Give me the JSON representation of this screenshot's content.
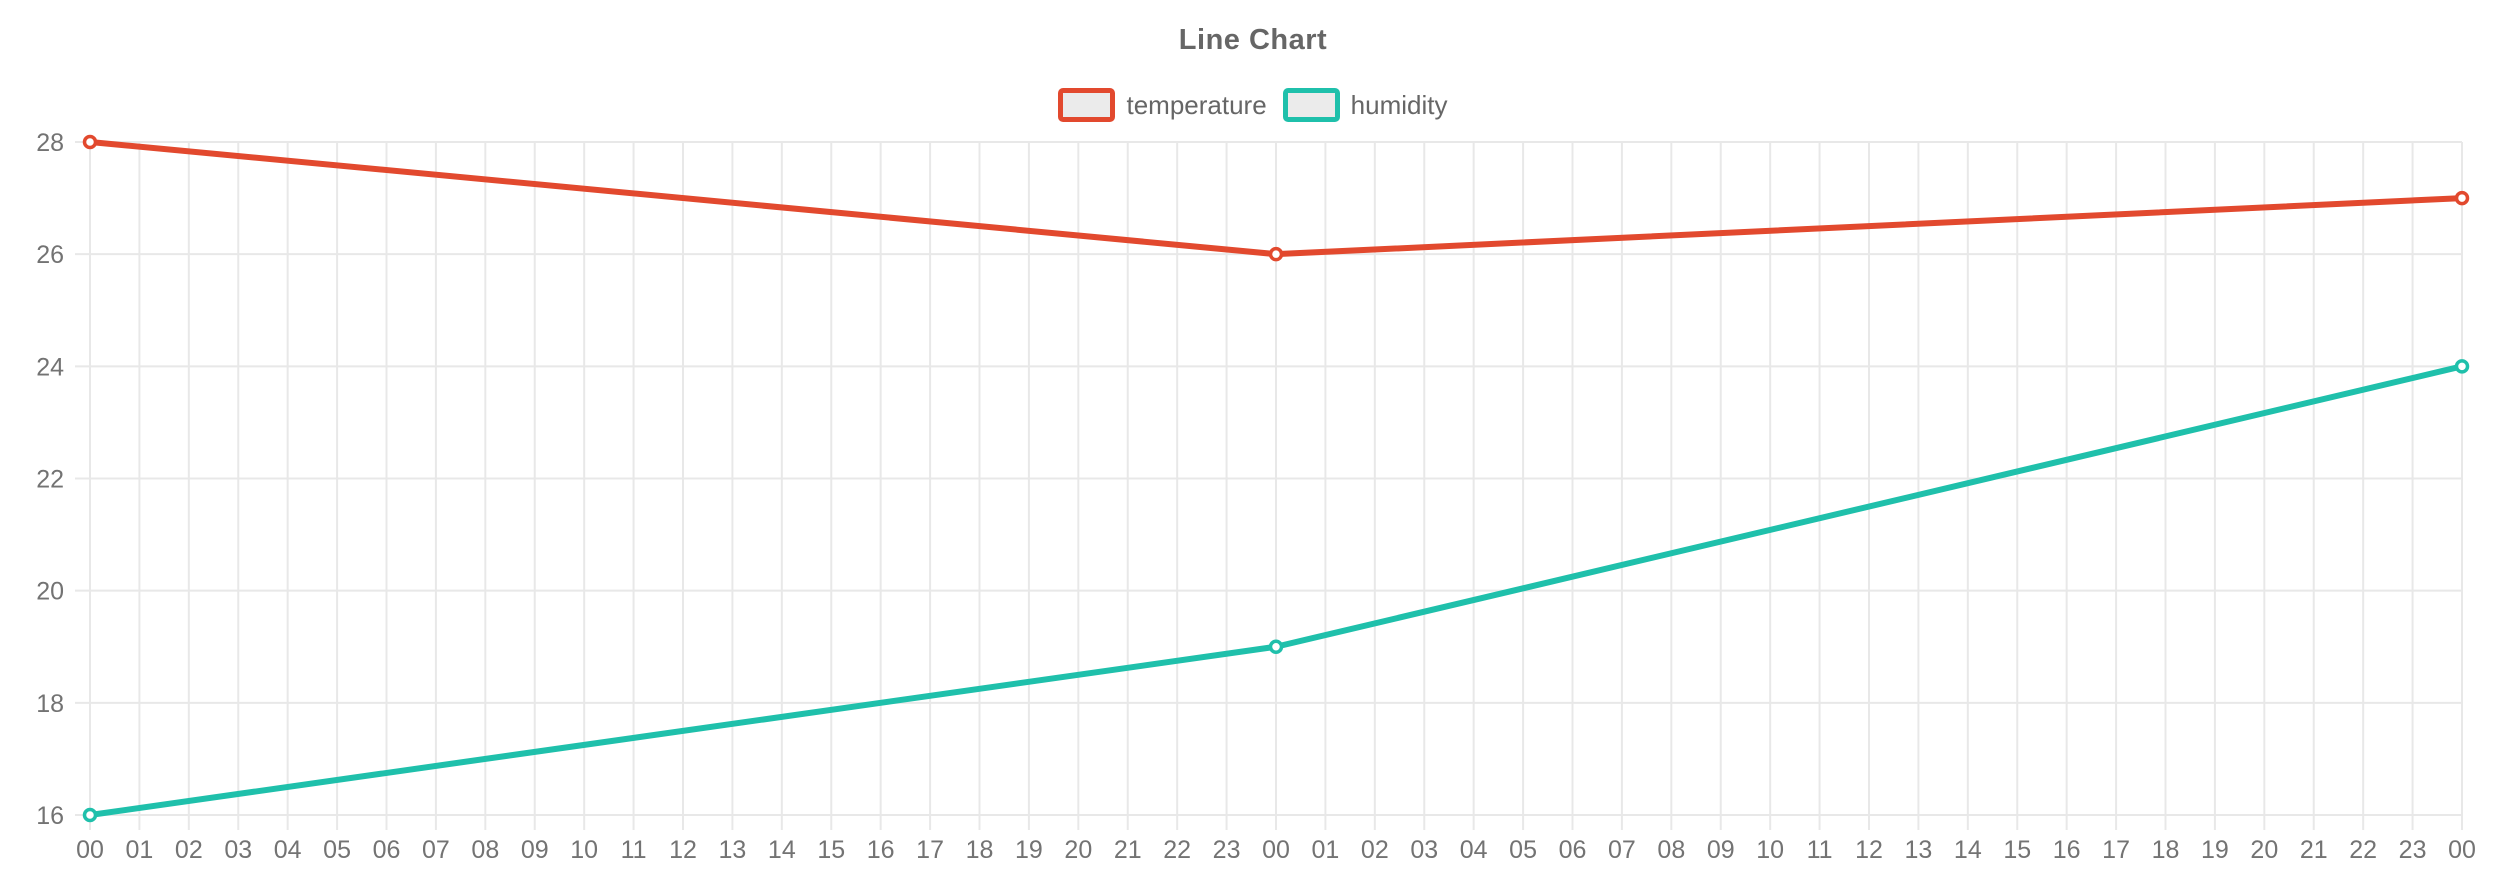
{
  "title": "Line Chart",
  "legend": {
    "position": "top",
    "items": [
      {
        "label": "temperature",
        "color": "#e2492e"
      },
      {
        "label": "humidity",
        "color": "#1fc0ab"
      }
    ]
  },
  "chart_data": {
    "type": "line",
    "title": "Line Chart",
    "categories": [
      "00",
      "01",
      "02",
      "03",
      "04",
      "05",
      "06",
      "07",
      "08",
      "09",
      "10",
      "11",
      "12",
      "13",
      "14",
      "15",
      "16",
      "17",
      "18",
      "19",
      "20",
      "21",
      "22",
      "23",
      "00",
      "01",
      "02",
      "03",
      "04",
      "05",
      "06",
      "07",
      "08",
      "09",
      "10",
      "11",
      "12",
      "13",
      "14",
      "15",
      "16",
      "17",
      "18",
      "19",
      "20",
      "21",
      "22",
      "23",
      "00"
    ],
    "series": [
      {
        "name": "temperature",
        "color": "#e2492e",
        "points": [
          {
            "x_index": 0,
            "y": 28
          },
          {
            "x_index": 24,
            "y": 26
          },
          {
            "x_index": 48,
            "y": 27
          }
        ]
      },
      {
        "name": "humidity",
        "color": "#1fc0ab",
        "points": [
          {
            "x_index": 0,
            "y": 16
          },
          {
            "x_index": 24,
            "y": 19
          },
          {
            "x_index": 48,
            "y": 24
          }
        ]
      }
    ],
    "y_axis": {
      "min": 16,
      "max": 28,
      "ticks": [
        16,
        18,
        20,
        22,
        24,
        26,
        28
      ]
    },
    "grid": true,
    "legend_position": "top",
    "marker_style": "open-circle"
  },
  "styles": {
    "background": "#ffffff",
    "grid_color": "#e8e8e8",
    "tick_label_color": "#737373",
    "title_color": "#666666",
    "legend_text_color": "#666666",
    "legend_swatch_fill": "#ebebeb",
    "point_fill": "#ffffff"
  }
}
